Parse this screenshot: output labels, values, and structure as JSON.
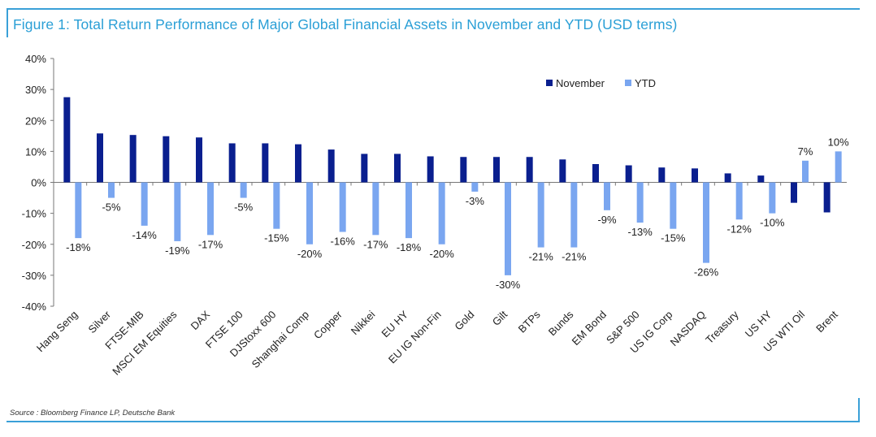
{
  "title": "Figure 1: Total Return Performance of Major Global Financial Assets in November and YTD (USD terms)",
  "source": "Source : Bloomberg Finance LP, Deutsche Bank",
  "colors": {
    "november": "#0a1f8f",
    "ytd": "#7aa6f0",
    "title": "#2a9fd6",
    "frame": "#3aa0d8"
  },
  "chart_data": {
    "type": "bar",
    "title": "Figure 1: Total Return Performance of Major Global Financial Assets in November and YTD (USD terms)",
    "xlabel": "",
    "ylabel": "",
    "ylim": [
      -0.4,
      0.4
    ],
    "yticks": [
      "40%",
      "30%",
      "20%",
      "10%",
      "0%",
      "-10%",
      "-20%",
      "-30%",
      "-40%"
    ],
    "ytick_values": [
      0.4,
      0.3,
      0.2,
      0.1,
      0,
      -0.1,
      -0.2,
      -0.3,
      -0.4
    ],
    "grid": false,
    "legend_position": "top-right",
    "categories": [
      "Hang Seng",
      "Silver",
      "FTSE-MIB",
      "MSCI EM Equities",
      "DAX",
      "FTSE 100",
      "DJStoxx 600",
      "Shanghai Comp",
      "Copper",
      "Nikkei",
      "EU HY",
      "EU IG Non-Fin",
      "Gold",
      "Gilt",
      "BTPs",
      "Bunds",
      "EM Bond",
      "S&P 500",
      "US IG Corp",
      "NASDAQ",
      "Treasury",
      "US HY",
      "US WTI Oil",
      "Brent"
    ],
    "series": [
      {
        "name": "November",
        "values": [
          0.275,
          0.158,
          0.153,
          0.149,
          0.145,
          0.126,
          0.126,
          0.123,
          0.106,
          0.092,
          0.092,
          0.084,
          0.082,
          0.082,
          0.082,
          0.074,
          0.059,
          0.055,
          0.048,
          0.045,
          0.029,
          0.022,
          -0.066,
          -0.097
        ]
      },
      {
        "name": "YTD",
        "values": [
          -0.18,
          -0.05,
          -0.14,
          -0.19,
          -0.17,
          -0.05,
          -0.15,
          -0.2,
          -0.16,
          -0.17,
          -0.18,
          -0.2,
          -0.03,
          -0.3,
          -0.21,
          -0.21,
          -0.09,
          -0.13,
          -0.15,
          -0.26,
          -0.12,
          -0.1,
          0.07,
          0.1
        ]
      }
    ],
    "data_labels": [
      "-18%",
      "-5%",
      "-14%",
      "-19%",
      "-17%",
      "-5%",
      "-15%",
      "-20%",
      "-16%",
      "-17%",
      "-18%",
      "-20%",
      "-3%",
      "-30%",
      "-21%",
      "-21%",
      "-9%",
      "-13%",
      "-15%",
      "-26%",
      "-12%",
      "-10%",
      "7%",
      "10%"
    ]
  }
}
